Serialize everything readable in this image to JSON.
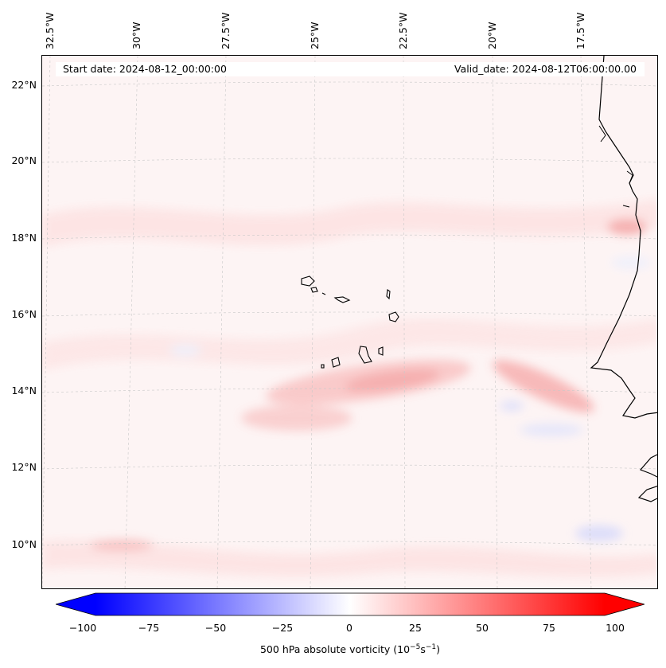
{
  "header": {
    "start_date": "Start date: 2024-08-12_00:00:00",
    "valid_date": "Valid_date: 2024-08-12T06:00:00.00"
  },
  "axes": {
    "longitude_ticks": [
      "32.5°W",
      "30°W",
      "27.5°W",
      "25°W",
      "22.5°W",
      "20°W",
      "17.5°W"
    ],
    "latitude_ticks": [
      "22°N",
      "20°N",
      "18°N",
      "16°N",
      "14°N",
      "12°N",
      "10°N"
    ]
  },
  "map": {
    "field": "500 hPa absolute vorticity",
    "features": [
      "gridlines",
      "coastline",
      "cape-verde-islands",
      "vorticity-contours"
    ]
  },
  "colorbar": {
    "tick_labels": [
      "−100",
      "−75",
      "−50",
      "−25",
      "0",
      "25",
      "50",
      "75",
      "100"
    ],
    "range": [
      -100,
      100
    ],
    "label_main": "500 hPa absolute vorticity (10",
    "label_exp1": "−5",
    "label_mid": "s",
    "label_exp2": "−1",
    "label_end": ")",
    "color_low": "#0000ff",
    "color_mid": "#ffffff",
    "color_high": "#ff0000"
  }
}
